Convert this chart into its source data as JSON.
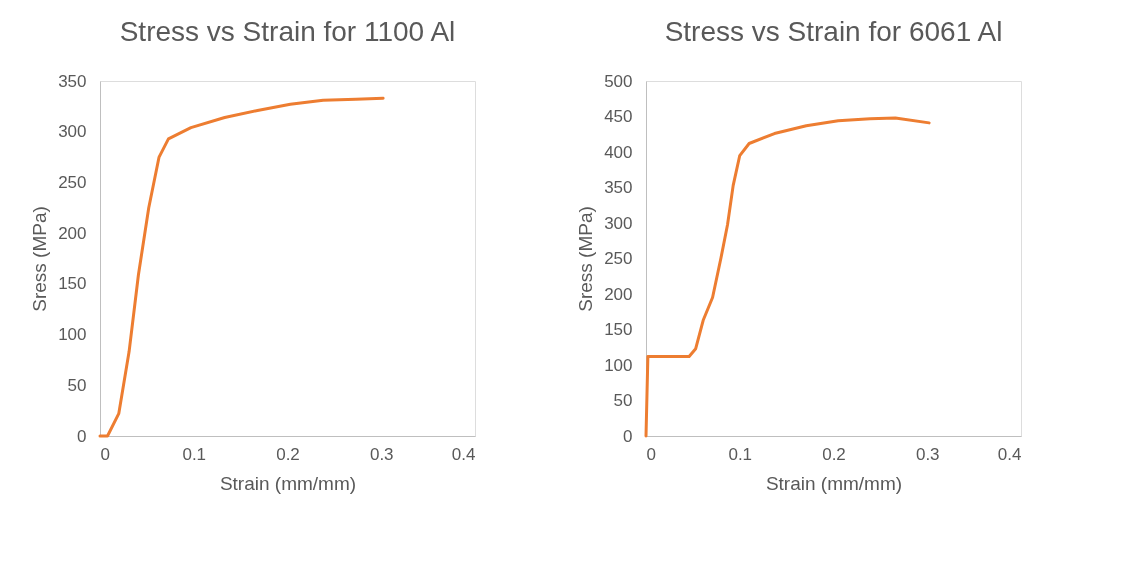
{
  "chart_data": [
    {
      "type": "line",
      "title": "Stress vs Strain for 1100 Al",
      "xlabel": "Strain (mm/mm)",
      "ylabel": "Sress (MPa)",
      "xlim": [
        0,
        0.4
      ],
      "xticks": [
        0,
        0.1,
        0.2,
        0.3,
        0.4
      ],
      "ylim": [
        0,
        350
      ],
      "yticks": [
        0,
        50,
        100,
        150,
        200,
        250,
        300,
        350
      ],
      "grid": false,
      "legend": false,
      "marker": "none",
      "line_style": "solid",
      "series": [
        {
          "color": "#ed7d31",
          "x": [
            0,
            0.008,
            0.02,
            0.031,
            0.041,
            0.052,
            0.063,
            0.073,
            0.097,
            0.133,
            0.168,
            0.203,
            0.238,
            0.273,
            0.302
          ],
          "values": [
            0,
            0,
            22,
            83,
            159,
            225,
            275,
            293,
            304,
            314,
            321,
            327,
            331,
            332,
            333
          ]
        }
      ]
    },
    {
      "type": "line",
      "title": "Stress vs Strain for 6061 Al",
      "xlabel": "Strain (mm/mm)",
      "ylabel": "Sress (MPa)",
      "xlim": [
        0,
        0.4
      ],
      "xticks": [
        0,
        0.1,
        0.2,
        0.3,
        0.4
      ],
      "ylim": [
        0,
        500
      ],
      "yticks": [
        0,
        50,
        100,
        150,
        200,
        250,
        300,
        350,
        400,
        450,
        500
      ],
      "grid": false,
      "legend": false,
      "marker": "none",
      "line_style": "solid",
      "series": [
        {
          "color": "#ed7d31",
          "x": [
            0,
            0.002,
            0.046,
            0.053,
            0.061,
            0.071,
            0.08,
            0.087,
            0.093,
            0.1,
            0.11,
            0.137,
            0.171,
            0.205,
            0.239,
            0.266,
            0.302
          ],
          "values": [
            0,
            112,
            112,
            123,
            163,
            195,
            251,
            298,
            353,
            395,
            412,
            426,
            437,
            444,
            447,
            448,
            441
          ]
        }
      ]
    }
  ]
}
